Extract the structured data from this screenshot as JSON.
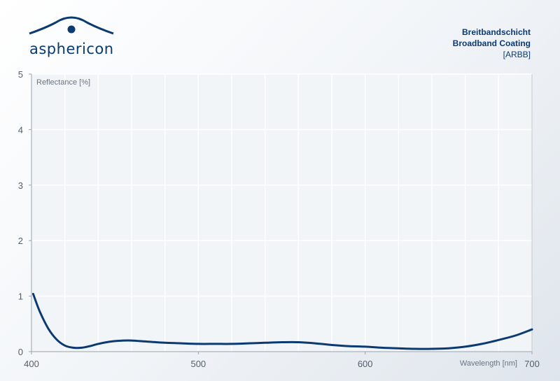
{
  "brand": {
    "name": "asphericon",
    "color": "#0b3a72"
  },
  "header": {
    "title": "Breitbandschicht",
    "subtitle": "Broadband Coating",
    "code": "[ARBB]"
  },
  "chart_data": {
    "type": "line",
    "ylabel": "Reflectance [%]",
    "xlabel": "Wavelength [nm]",
    "xlim": [
      400,
      700
    ],
    "ylim": [
      0,
      5
    ],
    "x_ticks": [
      400,
      500,
      600,
      700
    ],
    "y_ticks": [
      0,
      1,
      2,
      3,
      4,
      5
    ],
    "grid": true,
    "line_color": "#0b3a72",
    "series": [
      {
        "x": [
          401,
          405,
          410,
          415,
          420,
          425,
          430,
          435,
          440,
          445,
          450,
          455,
          460,
          470,
          480,
          490,
          500,
          510,
          520,
          530,
          540,
          550,
          560,
          570,
          580,
          590,
          600,
          610,
          620,
          630,
          640,
          650,
          660,
          670,
          680,
          690,
          700
        ],
        "y": [
          1.04,
          0.72,
          0.42,
          0.22,
          0.11,
          0.07,
          0.07,
          0.1,
          0.14,
          0.17,
          0.19,
          0.2,
          0.2,
          0.18,
          0.16,
          0.15,
          0.14,
          0.14,
          0.14,
          0.15,
          0.16,
          0.17,
          0.17,
          0.15,
          0.12,
          0.1,
          0.09,
          0.07,
          0.06,
          0.05,
          0.05,
          0.06,
          0.09,
          0.14,
          0.21,
          0.29,
          0.4
        ]
      }
    ]
  }
}
